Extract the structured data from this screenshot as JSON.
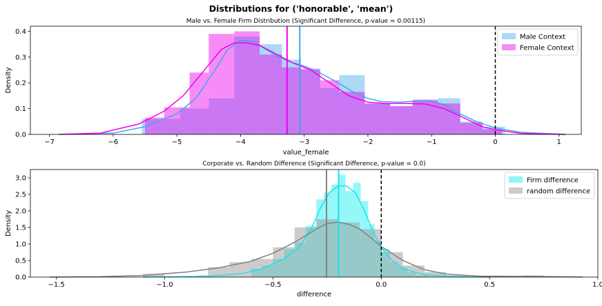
{
  "figure": {
    "suptitle": "Distributions for ('honorable', 'mean')"
  },
  "colors": {
    "male": "#5ab4ee",
    "male_line": "#3aa8e8",
    "female": "#ee00ee",
    "firm": "#00eeee",
    "firm_line": "#22e0e8",
    "random": "#999999",
    "random_line": "#808080",
    "overlap_top": "#c080f8",
    "overlap_bottom": "#90c8c4",
    "zero_line": "#000000"
  },
  "chart_data": [
    {
      "type": "histogram-kde",
      "title": "Male vs. Female Firm Distribution (Significant Difference, p-value = 0.00115)",
      "xlabel": "value_female",
      "ylabel": "Density",
      "xlim": [
        -7.3,
        1.35
      ],
      "ylim": [
        0,
        0.42
      ],
      "xticks": [
        -7,
        -6,
        -5,
        -4,
        -3,
        -2,
        -1,
        0,
        1
      ],
      "yticks": [
        0.0,
        0.1,
        0.2,
        0.3,
        0.4
      ],
      "legend_position": "top-right",
      "vlines": [
        {
          "x": -3.27,
          "series": "Female Context"
        },
        {
          "x": -3.07,
          "series": "Male Context"
        },
        {
          "x": 0,
          "style": "dashed"
        }
      ],
      "series": [
        {
          "name": "Male Context",
          "bins": [
            [
              -5.55,
              -4.95,
              0.06
            ],
            [
              -4.95,
              -4.5,
              0.1
            ],
            [
              -4.5,
              -4.1,
              0.14
            ],
            [
              -4.1,
              -3.7,
              0.38
            ],
            [
              -3.7,
              -3.35,
              0.35
            ],
            [
              -3.35,
              -3.05,
              0.29
            ],
            [
              -3.05,
              -2.75,
              0.25
            ],
            [
              -2.75,
              -2.45,
              0.18
            ],
            [
              -2.45,
              -2.05,
              0.23
            ],
            [
              -2.05,
              -1.65,
              0.12
            ],
            [
              -1.65,
              -1.3,
              0.11
            ],
            [
              -1.3,
              -0.9,
              0.13
            ],
            [
              -0.9,
              -0.55,
              0.14
            ],
            [
              -0.55,
              -0.2,
              0.05
            ],
            [
              -0.2,
              0.15,
              0.03
            ]
          ],
          "kde": [
            [
              -6.85,
              0.0
            ],
            [
              -6.0,
              0.005
            ],
            [
              -5.5,
              0.03
            ],
            [
              -5.0,
              0.08
            ],
            [
              -4.7,
              0.14
            ],
            [
              -4.4,
              0.25
            ],
            [
              -4.2,
              0.33
            ],
            [
              -4.0,
              0.365
            ],
            [
              -3.8,
              0.36
            ],
            [
              -3.6,
              0.33
            ],
            [
              -3.4,
              0.3
            ],
            [
              -3.2,
              0.28
            ],
            [
              -3.0,
              0.265
            ],
            [
              -2.8,
              0.245
            ],
            [
              -2.5,
              0.205
            ],
            [
              -2.2,
              0.16
            ],
            [
              -2.0,
              0.14
            ],
            [
              -1.8,
              0.128
            ],
            [
              -1.5,
              0.125
            ],
            [
              -1.2,
              0.13
            ],
            [
              -1.0,
              0.13
            ],
            [
              -0.8,
              0.115
            ],
            [
              -0.6,
              0.085
            ],
            [
              -0.3,
              0.05
            ],
            [
              0.0,
              0.025
            ],
            [
              0.4,
              0.008
            ],
            [
              1.1,
              0.0
            ]
          ]
        },
        {
          "name": "Female Context",
          "bins": [
            [
              -5.5,
              -5.2,
              0.065
            ],
            [
              -5.2,
              -4.8,
              0.105
            ],
            [
              -4.8,
              -4.5,
              0.24
            ],
            [
              -4.5,
              -4.1,
              0.39
            ],
            [
              -4.1,
              -3.7,
              0.4
            ],
            [
              -3.7,
              -3.35,
              0.31
            ],
            [
              -3.35,
              -3.05,
              0.26
            ],
            [
              -3.05,
              -2.75,
              0.255
            ],
            [
              -2.75,
              -2.45,
              0.21
            ],
            [
              -2.45,
              -2.05,
              0.165
            ],
            [
              -2.05,
              -1.65,
              0.12
            ],
            [
              -1.65,
              -1.3,
              0.11
            ],
            [
              -1.3,
              -0.9,
              0.135
            ],
            [
              -0.9,
              -0.55,
              0.12
            ],
            [
              -0.55,
              -0.2,
              0.045
            ],
            [
              -0.2,
              0.1,
              0.02
            ]
          ],
          "kde": [
            [
              -6.85,
              0.0
            ],
            [
              -6.2,
              0.005
            ],
            [
              -5.6,
              0.04
            ],
            [
              -5.2,
              0.09
            ],
            [
              -4.9,
              0.15
            ],
            [
              -4.6,
              0.24
            ],
            [
              -4.3,
              0.33
            ],
            [
              -4.1,
              0.355
            ],
            [
              -3.9,
              0.355
            ],
            [
              -3.7,
              0.345
            ],
            [
              -3.5,
              0.32
            ],
            [
              -3.2,
              0.28
            ],
            [
              -2.9,
              0.25
            ],
            [
              -2.6,
              0.2
            ],
            [
              -2.3,
              0.15
            ],
            [
              -2.0,
              0.125
            ],
            [
              -1.7,
              0.12
            ],
            [
              -1.4,
              0.12
            ],
            [
              -1.1,
              0.118
            ],
            [
              -0.8,
              0.1
            ],
            [
              -0.5,
              0.065
            ],
            [
              -0.2,
              0.03
            ],
            [
              0.0,
              0.018
            ],
            [
              0.4,
              0.004
            ],
            [
              1.1,
              0.0
            ]
          ]
        }
      ]
    },
    {
      "type": "histogram-kde",
      "title": "Corporate vs. Random Difference (Significant Difference, p-value = 0.0)",
      "xlabel": "difference",
      "ylabel": "Density",
      "xlim": [
        -1.62,
        1.0
      ],
      "ylim": [
        0,
        3.25
      ],
      "xticks": [
        -1.5,
        -1.0,
        -0.5,
        0.0,
        0.5,
        1.0
      ],
      "yticks": [
        0.0,
        0.5,
        1.0,
        1.5,
        2.0,
        2.5,
        3.0
      ],
      "legend_position": "top-right",
      "vlines": [
        {
          "x": -0.253,
          "series": "random difference"
        },
        {
          "x": -0.197,
          "series": "Firm difference"
        },
        {
          "x": 0,
          "style": "dashed"
        }
      ],
      "series": [
        {
          "name": "Firm difference",
          "bins": [
            [
              -0.6,
              -0.55,
              0.25
            ],
            [
              -0.55,
              -0.5,
              0.35
            ],
            [
              -0.5,
              -0.45,
              0.55
            ],
            [
              -0.45,
              -0.4,
              0.85
            ],
            [
              -0.4,
              -0.35,
              1.05
            ],
            [
              -0.35,
              -0.3,
              1.55
            ],
            [
              -0.3,
              -0.265,
              2.35
            ],
            [
              -0.265,
              -0.23,
              2.55
            ],
            [
              -0.23,
              -0.2,
              2.8
            ],
            [
              -0.2,
              -0.165,
              3.1
            ],
            [
              -0.165,
              -0.13,
              2.6
            ],
            [
              -0.13,
              -0.095,
              2.85
            ],
            [
              -0.095,
              -0.06,
              2.3
            ],
            [
              -0.06,
              -0.03,
              1.6
            ],
            [
              -0.03,
              0.0,
              1.1
            ],
            [
              0.0,
              0.04,
              0.85
            ],
            [
              0.04,
              0.08,
              0.45
            ],
            [
              0.08,
              0.12,
              0.3
            ],
            [
              0.12,
              0.16,
              0.15
            ],
            [
              0.16,
              0.22,
              0.05
            ]
          ],
          "kde": [
            [
              -1.1,
              0.0
            ],
            [
              -0.8,
              0.02
            ],
            [
              -0.65,
              0.1
            ],
            [
              -0.55,
              0.25
            ],
            [
              -0.45,
              0.55
            ],
            [
              -0.38,
              0.9
            ],
            [
              -0.32,
              1.5
            ],
            [
              -0.28,
              2.1
            ],
            [
              -0.24,
              2.55
            ],
            [
              -0.2,
              2.75
            ],
            [
              -0.16,
              2.75
            ],
            [
              -0.12,
              2.55
            ],
            [
              -0.08,
              2.05
            ],
            [
              -0.04,
              1.4
            ],
            [
              0.0,
              0.9
            ],
            [
              0.05,
              0.5
            ],
            [
              0.1,
              0.25
            ],
            [
              0.2,
              0.07
            ],
            [
              0.35,
              0.01
            ],
            [
              0.5,
              0.0
            ]
          ]
        },
        {
          "name": "random difference",
          "bins": [
            [
              -1.1,
              -1.0,
              0.1
            ],
            [
              -0.85,
              -0.8,
              0.05
            ],
            [
              -0.8,
              -0.7,
              0.3
            ],
            [
              -0.7,
              -0.6,
              0.45
            ],
            [
              -0.6,
              -0.5,
              0.55
            ],
            [
              -0.5,
              -0.4,
              0.9
            ],
            [
              -0.4,
              -0.3,
              1.5
            ],
            [
              -0.3,
              -0.2,
              1.75
            ],
            [
              -0.2,
              -0.1,
              1.65
            ],
            [
              -0.1,
              0.0,
              1.45
            ],
            [
              0.0,
              0.1,
              0.75
            ],
            [
              0.1,
              0.2,
              0.35
            ],
            [
              0.2,
              0.3,
              0.15
            ],
            [
              0.3,
              0.4,
              0.05
            ],
            [
              0.65,
              0.75,
              0.05
            ]
          ],
          "kde": [
            [
              -1.53,
              0.0
            ],
            [
              -1.3,
              0.01
            ],
            [
              -1.1,
              0.05
            ],
            [
              -0.9,
              0.15
            ],
            [
              -0.75,
              0.28
            ],
            [
              -0.6,
              0.48
            ],
            [
              -0.5,
              0.72
            ],
            [
              -0.4,
              1.05
            ],
            [
              -0.3,
              1.45
            ],
            [
              -0.25,
              1.62
            ],
            [
              -0.2,
              1.66
            ],
            [
              -0.15,
              1.6
            ],
            [
              -0.1,
              1.45
            ],
            [
              -0.05,
              1.2
            ],
            [
              0.0,
              0.92
            ],
            [
              0.1,
              0.5
            ],
            [
              0.2,
              0.22
            ],
            [
              0.3,
              0.09
            ],
            [
              0.45,
              0.03
            ],
            [
              0.6,
              0.02
            ],
            [
              0.75,
              0.015
            ],
            [
              0.93,
              0.0
            ]
          ]
        }
      ]
    }
  ]
}
